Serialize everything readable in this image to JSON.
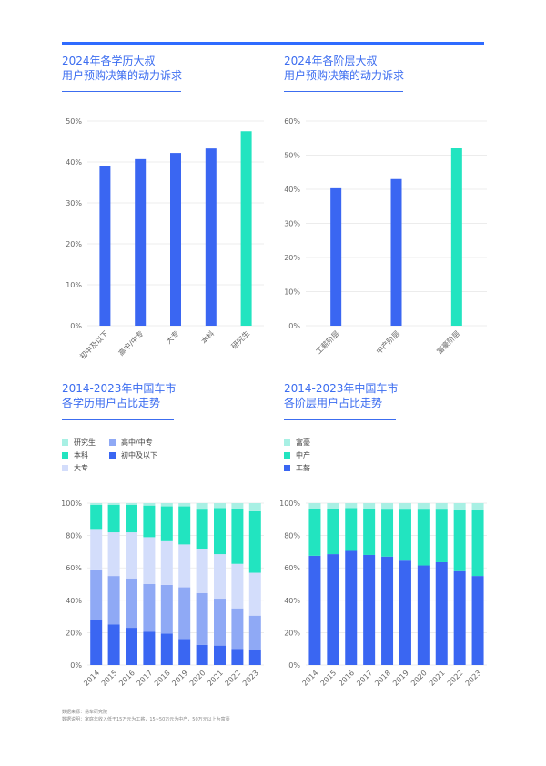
{
  "colors": {
    "accent": "#2f6bff",
    "title": "#3c6df0",
    "blue": "#3a66f2",
    "teal": "#22e4c0",
    "light_teal": "#a8f0e4",
    "mid_blue": "#8fa9f5",
    "pale_blue": "#d3ddfb"
  },
  "titles": {
    "c1_line1": "2024年各学历大叔",
    "c1_line2": "用户预购决策的动力诉求",
    "c2_line1": "2024年各阶层大叔",
    "c2_line2": "用户预购决策的动力诉求",
    "c3_line1": "2014-2023年中国车市",
    "c3_line2": "各学历用户占比走势",
    "c4_line1": "2014-2023年中国车市",
    "c4_line2": "各阶层用户占比走势"
  },
  "source": {
    "line1": "数据来源：易车研究院",
    "line2": "数据说明：家庭年收入低于15万元为工薪，15~50万元为中产，50万元以上为富豪"
  },
  "chart_data": [
    {
      "type": "bar",
      "title": "2024年各学历大叔用户预购决策的动力诉求",
      "categories": [
        "初中及以下",
        "高中/中专",
        "大专",
        "本科",
        "研究生"
      ],
      "values": [
        39,
        40.7,
        42.2,
        43.3,
        47.5
      ],
      "highlight_index": 4,
      "ylim": [
        0,
        50
      ],
      "yticks": [
        "0%",
        "10%",
        "20%",
        "30%",
        "40%",
        "50%"
      ],
      "xlabel": "",
      "ylabel": ""
    },
    {
      "type": "bar",
      "title": "2024年各阶层大叔用户预购决策的动力诉求",
      "categories": [
        "工薪阶层",
        "中产阶层",
        "富豪阶层"
      ],
      "values": [
        40.3,
        43,
        52
      ],
      "highlight_index": 2,
      "ylim": [
        0,
        60
      ],
      "yticks": [
        "0%",
        "10%",
        "20%",
        "30%",
        "40%",
        "50%",
        "60%"
      ],
      "xlabel": "",
      "ylabel": ""
    },
    {
      "type": "bar",
      "stacked": true,
      "title": "2014-2023年中国车市各学历用户占比走势",
      "categories": [
        "2014",
        "2015",
        "2016",
        "2017",
        "2018",
        "2019",
        "2020",
        "2021",
        "2022",
        "2023"
      ],
      "ylim": [
        0,
        100
      ],
      "yticks": [
        "0%",
        "20%",
        "40%",
        "60%",
        "80%",
        "100%"
      ],
      "legend": [
        "研究生",
        "高中/中专",
        "本科",
        "初中及以下",
        "大专"
      ],
      "series": [
        {
          "name": "初中及以下",
          "values": [
            28,
            25,
            23,
            20.5,
            19.5,
            16,
            12.5,
            12,
            10,
            9
          ]
        },
        {
          "name": "高中/中专",
          "values": [
            30.5,
            30,
            30.5,
            29.5,
            30,
            32,
            32,
            29,
            25,
            21.5
          ]
        },
        {
          "name": "大专",
          "values": [
            25,
            27,
            28.5,
            29,
            27,
            26.5,
            27,
            27.5,
            27.5,
            26.5
          ]
        },
        {
          "name": "本科",
          "values": [
            15.5,
            17,
            17,
            19.5,
            21.5,
            23.5,
            24.5,
            28.5,
            34,
            38
          ]
        },
        {
          "name": "研究生",
          "values": [
            1,
            1,
            1,
            1.5,
            2,
            2,
            4,
            3,
            3.5,
            5
          ]
        }
      ]
    },
    {
      "type": "bar",
      "stacked": true,
      "title": "2014-2023年中国车市各阶层用户占比走势",
      "categories": [
        "2014",
        "2015",
        "2016",
        "2017",
        "2018",
        "2019",
        "2020",
        "2021",
        "2022",
        "2023"
      ],
      "ylim": [
        0,
        100
      ],
      "yticks": [
        "0%",
        "20%",
        "40%",
        "60%",
        "80%",
        "100%"
      ],
      "legend": [
        "富豪",
        "中产",
        "工薪"
      ],
      "series": [
        {
          "name": "工薪",
          "values": [
            67.5,
            68.5,
            70.5,
            68,
            67,
            64.5,
            61.5,
            63.5,
            58,
            55
          ]
        },
        {
          "name": "中产",
          "values": [
            29,
            28,
            26.5,
            28.5,
            29,
            31.5,
            34.5,
            32.5,
            37.5,
            40.5
          ]
        },
        {
          "name": "富豪",
          "values": [
            3.5,
            3.5,
            3,
            3.5,
            4,
            4,
            4,
            4,
            4.5,
            4.5
          ]
        }
      ]
    }
  ]
}
